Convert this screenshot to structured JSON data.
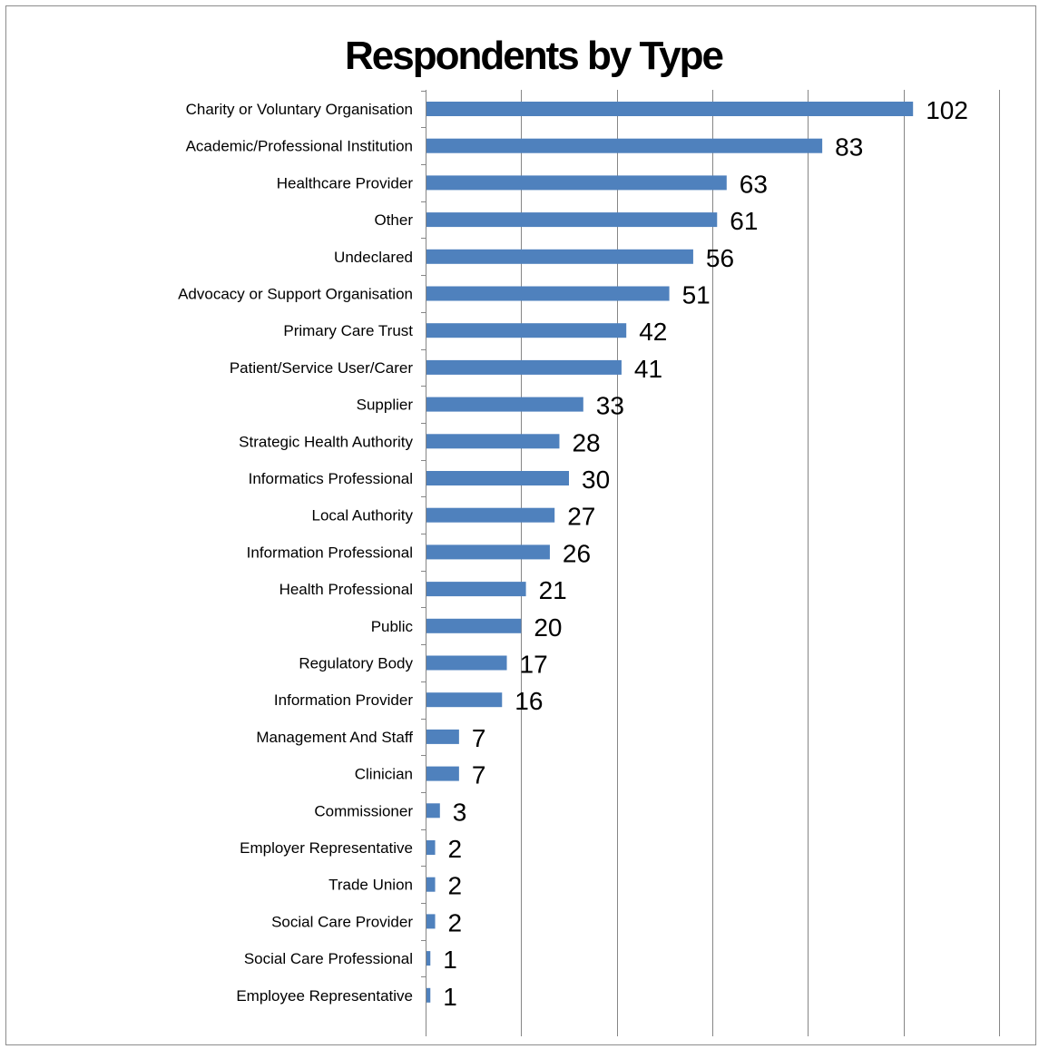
{
  "chart_data": {
    "type": "bar",
    "orientation": "horizontal",
    "title": "Respondents by Type",
    "xlabel": "",
    "ylabel": "",
    "xlim": [
      0,
      120
    ],
    "grid": true,
    "bar_color": "#4f81bd",
    "categories": [
      "Charity or Voluntary Organisation",
      "Academic/Professional Institution",
      "Healthcare Provider",
      "Other",
      "Undeclared",
      "Advocacy or Support Organisation",
      "Primary Care Trust",
      "Patient/Service User/Carer",
      "Supplier",
      "Strategic Health Authority",
      "Informatics Professional",
      "Local Authority",
      "Information Professional",
      "Health Professional",
      "Public",
      "Regulatory Body",
      "Information Provider",
      "Management And Staff",
      "Clinician",
      "Commissioner",
      "Employer Representative",
      "Trade Union",
      "Social Care Provider",
      "Social Care Professional",
      "Employee Representative"
    ],
    "values": [
      102,
      83,
      63,
      61,
      56,
      51,
      42,
      41,
      33,
      28,
      30,
      27,
      26,
      21,
      20,
      17,
      16,
      7,
      7,
      3,
      2,
      2,
      2,
      1,
      1
    ]
  }
}
